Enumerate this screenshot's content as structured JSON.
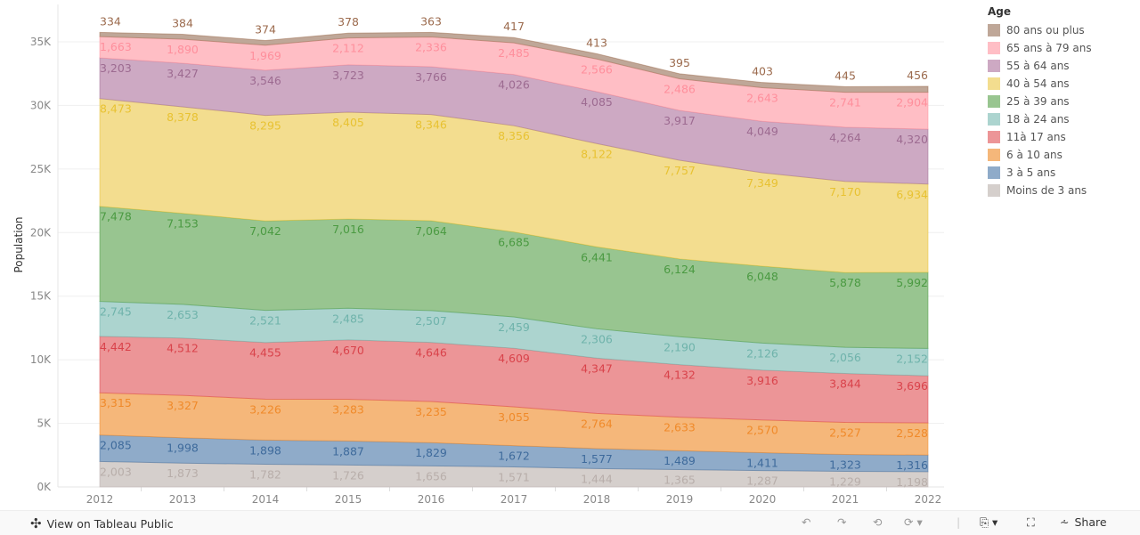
{
  "chart_data": {
    "type": "area",
    "stacked": true,
    "title": "",
    "xlabel": "",
    "ylabel": "Population",
    "x": [
      "2012",
      "2013",
      "2014",
      "2015",
      "2016",
      "2017",
      "2018",
      "2019",
      "2020",
      "2021",
      "2022"
    ],
    "ylim": [
      0,
      37500
    ],
    "yticks": [
      0,
      5000,
      10000,
      15000,
      20000,
      25000,
      30000,
      35000
    ],
    "ytick_labels": [
      "0K",
      "5K",
      "10K",
      "15K",
      "20K",
      "25K",
      "30K",
      "35K"
    ],
    "grid": true,
    "legend_title": "Age",
    "legend_placement": "right",
    "series": [
      {
        "name": "Moins de 3 ans",
        "color": "#d5cfcc",
        "label_color": "#b8aeaa",
        "values": [
          2003,
          1873,
          1782,
          1726,
          1656,
          1571,
          1444,
          1365,
          1287,
          1229,
          1198
        ]
      },
      {
        "name": "3 à 5 ans",
        "color": "#8fabc9",
        "label_color": "#3f6b9c",
        "values": [
          2085,
          1998,
          1898,
          1887,
          1829,
          1672,
          1577,
          1489,
          1411,
          1323,
          1316
        ]
      },
      {
        "name": "6 à 10 ans",
        "color": "#f5b77a",
        "label_color": "#f08a2a",
        "values": [
          3315,
          3327,
          3226,
          3283,
          3235,
          3055,
          2764,
          2633,
          2570,
          2527,
          2528
        ]
      },
      {
        "name": "11à 17 ans",
        "color": "#ec9597",
        "label_color": "#d9434b",
        "values": [
          4442,
          4512,
          4455,
          4670,
          4646,
          4609,
          4347,
          4132,
          3916,
          3844,
          3696
        ]
      },
      {
        "name": "18 à 24 ans",
        "color": "#acd4cf",
        "label_color": "#6fb3ab",
        "values": [
          2745,
          2653,
          2521,
          2485,
          2507,
          2459,
          2306,
          2190,
          2126,
          2056,
          2152
        ]
      },
      {
        "name": "25 à 39 ans",
        "color": "#98c590",
        "label_color": "#4b9a42",
        "values": [
          7478,
          7153,
          7042,
          7016,
          7064,
          6685,
          6441,
          6124,
          6048,
          5878,
          5992
        ]
      },
      {
        "name": "40 à 54 ans",
        "color": "#f3dd8f",
        "label_color": "#e8c232",
        "values": [
          8473,
          8378,
          8295,
          8405,
          8346,
          8356,
          8122,
          7757,
          7349,
          7170,
          6934
        ]
      },
      {
        "name": "55 à 64 ans",
        "color": "#cda9c3",
        "label_color": "#9d6b91",
        "values": [
          3203,
          3427,
          3546,
          3723,
          3766,
          4026,
          4085,
          3917,
          4049,
          4264,
          4320
        ]
      },
      {
        "name": "65 ans à 79 ans",
        "color": "#ffbec5",
        "label_color": "#ff8f9c",
        "values": [
          1663,
          1890,
          1969,
          2112,
          2336,
          2485,
          2566,
          2486,
          2643,
          2741,
          2904
        ]
      },
      {
        "name": "80 ans ou plus",
        "color": "#bfa798",
        "label_color": "#9c6b4e",
        "values": [
          334,
          384,
          374,
          378,
          363,
          417,
          413,
          395,
          403,
          445,
          456
        ]
      }
    ]
  },
  "toolbar": {
    "view_label": "View on Tableau Public",
    "share_label": "Share",
    "icons": [
      "undo-icon",
      "redo-icon",
      "revert-icon",
      "refresh-icon",
      "download-icon",
      "fullscreen-icon",
      "share-icon"
    ]
  }
}
